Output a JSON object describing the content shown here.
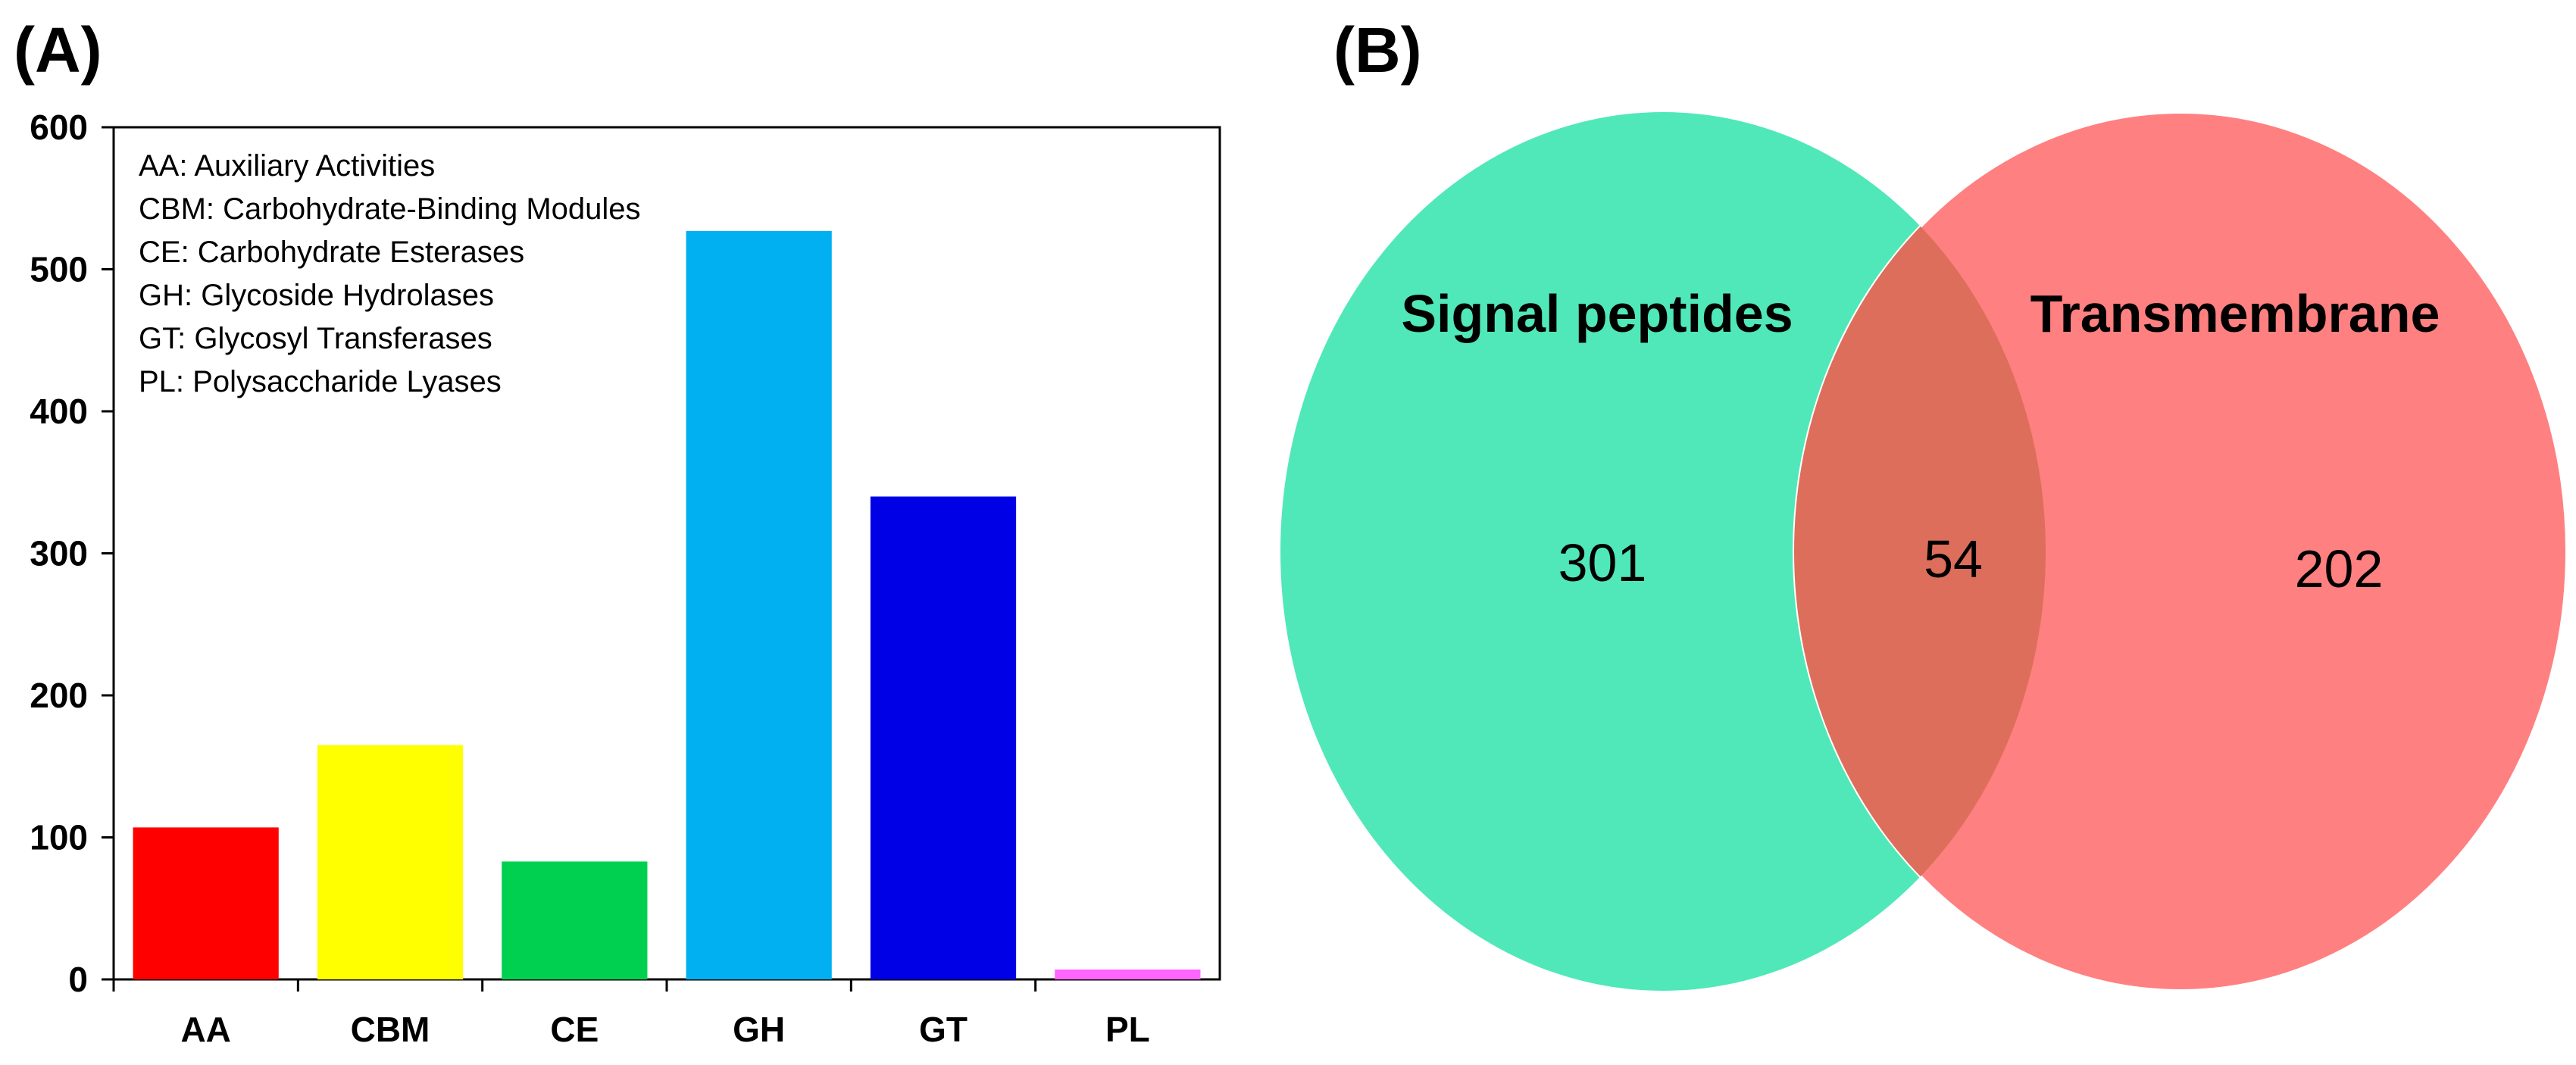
{
  "panel_a_label": "(A)",
  "panel_b_label": "(B)",
  "chart_data": [
    {
      "type": "bar",
      "categories": [
        "AA",
        "CBM",
        "CE",
        "GH",
        "GT",
        "PL"
      ],
      "values": [
        107,
        165,
        83,
        527,
        340,
        7
      ],
      "colors": [
        "#ff0000",
        "#ffff00",
        "#00d050",
        "#00b0f0",
        "#0000e6",
        "#ff66ff"
      ],
      "ylim": [
        0,
        600
      ],
      "yticks": [
        0,
        100,
        200,
        300,
        400,
        500,
        600
      ],
      "legend": [
        "AA: Auxiliary Activities",
        "CBM: Carbohydrate-Binding Modules",
        "CE: Carbohydrate Esterases",
        "GH: Glycoside Hydrolases",
        "GT: Glycosyl Transferases",
        "PL: Polysaccharide Lyases"
      ],
      "legend_placement": "top-left",
      "title": "",
      "xlabel": "",
      "ylabel": ""
    },
    {
      "type": "venn",
      "sets": [
        {
          "name": "Signal peptides",
          "only": 301,
          "color": "#50e8b8"
        },
        {
          "name": "Transmembrane",
          "only": 202,
          "color": "#ff8080"
        }
      ],
      "intersection": 54,
      "intersection_color": "#de6e5c"
    }
  ]
}
